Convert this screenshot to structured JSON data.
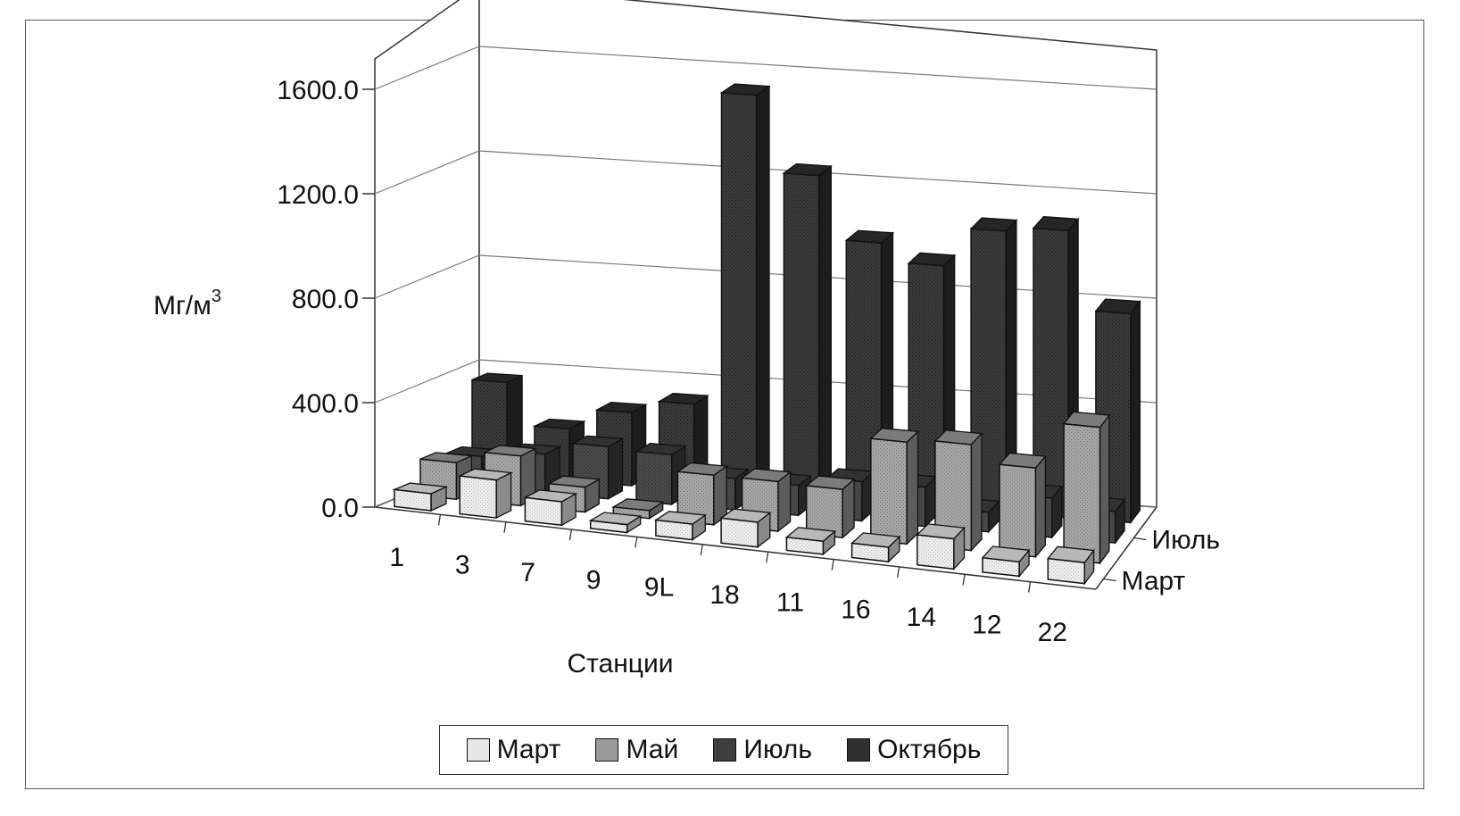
{
  "chart_data": {
    "type": "bar",
    "subtype": "3d-clustered-depth",
    "categories": [
      "1",
      "3",
      "7",
      "9",
      "9L",
      "18",
      "11",
      "16",
      "14",
      "12",
      "22"
    ],
    "series": [
      {
        "name": "Март",
        "values": [
          65,
          145,
          90,
          30,
          60,
          95,
          50,
          55,
          115,
          55,
          80
        ],
        "color": "#e6e6e6"
      },
      {
        "name": "Май",
        "values": [
          140,
          190,
          95,
          30,
          190,
          190,
          185,
          390,
          405,
          340,
          520
        ],
        "color": "#9a9a9a"
      },
      {
        "name": "Июль",
        "values": [
          120,
          150,
          200,
          190,
          120,
          115,
          150,
          150,
          75,
          150,
          120
        ],
        "color": "#3e3e3e"
      },
      {
        "name": "Октябрь",
        "values": [
          360,
          200,
          280,
          330,
          1530,
          1240,
          1000,
          930,
          1080,
          1100,
          800
        ],
        "color": "#303030"
      }
    ],
    "depth_labels": [
      "Март",
      "Июль"
    ],
    "title": "",
    "xlabel": "Станции",
    "ylabel": "Мг/м",
    "ylabel_superscript": "3",
    "yticks": [
      "0.0",
      "400.0",
      "800.0",
      "1200.0",
      "1600.0"
    ],
    "ylim": [
      0,
      1600
    ],
    "grid": true,
    "legend_position": "bottom"
  }
}
